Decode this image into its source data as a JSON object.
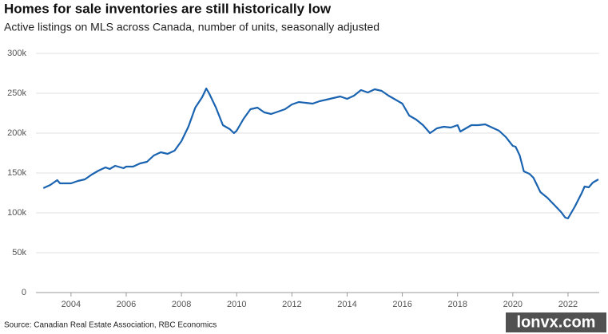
{
  "chart_data": {
    "type": "line",
    "title": "Homes for sale inventories are still historically low",
    "subtitle": "Active listings on MLS across Canada, number of units, seasonally adjusted",
    "source": "Source: Canadian Real Estate Association, RBC Economics",
    "watermark": "lonvx.com",
    "x": [
      2003.0,
      2003.25,
      2003.5,
      2003.6,
      2004.0,
      2004.25,
      2004.5,
      2004.75,
      2005.0,
      2005.25,
      2005.4,
      2005.6,
      2005.9,
      2006.0,
      2006.25,
      2006.5,
      2006.75,
      2007.0,
      2007.25,
      2007.5,
      2007.75,
      2008.0,
      2008.25,
      2008.5,
      2008.75,
      2008.9,
      2009.0,
      2009.25,
      2009.5,
      2009.75,
      2009.9,
      2010.0,
      2010.25,
      2010.5,
      2010.75,
      2011.0,
      2011.25,
      2011.5,
      2011.75,
      2012.0,
      2012.25,
      2012.5,
      2012.75,
      2013.0,
      2013.25,
      2013.5,
      2013.75,
      2014.0,
      2014.25,
      2014.5,
      2014.75,
      2015.0,
      2015.25,
      2015.5,
      2015.75,
      2016.0,
      2016.25,
      2016.5,
      2016.75,
      2017.0,
      2017.25,
      2017.5,
      2017.75,
      2018.0,
      2018.1,
      2018.5,
      2018.75,
      2019.0,
      2019.25,
      2019.5,
      2019.75,
      2020.0,
      2020.1,
      2020.25,
      2020.4,
      2020.6,
      2020.75,
      2021.0,
      2021.25,
      2021.5,
      2021.75,
      2021.9,
      2022.0,
      2022.25,
      2022.5,
      2022.6,
      2022.75,
      2022.9,
      2023.1
    ],
    "series": [
      {
        "name": "Active listings",
        "color": "#1a63b0",
        "values": [
          131000,
          135000,
          141000,
          137000,
          137000,
          140000,
          142000,
          148000,
          153000,
          157000,
          155000,
          159000,
          156000,
          158000,
          158000,
          162000,
          164000,
          172000,
          176000,
          174000,
          178000,
          190000,
          208000,
          232000,
          245000,
          256000,
          250000,
          232000,
          210000,
          205000,
          200000,
          203000,
          218000,
          230000,
          232000,
          226000,
          224000,
          227000,
          230000,
          236000,
          239000,
          238000,
          237000,
          240000,
          242000,
          244000,
          246000,
          243000,
          247000,
          254000,
          251000,
          255000,
          253000,
          247000,
          242000,
          237000,
          222000,
          217000,
          210000,
          200000,
          206000,
          208000,
          207000,
          210000,
          202000,
          210000,
          210000,
          211000,
          207000,
          203000,
          195000,
          184000,
          183000,
          172000,
          152000,
          149000,
          144000,
          126000,
          119000,
          110000,
          101000,
          94000,
          93000,
          108000,
          125000,
          133000,
          132000,
          138000,
          142000
        ]
      }
    ],
    "xlim": [
      2002.73,
      2023.13
    ],
    "xticks": [
      2004,
      2006,
      2008,
      2010,
      2012,
      2014,
      2016,
      2018,
      2020,
      2022
    ],
    "ylim": [
      0,
      300000
    ],
    "yticks": [
      0,
      {
        "value": 50000,
        "label": "50k"
      },
      {
        "value": 100000,
        "label": "100k"
      },
      {
        "value": 150000,
        "label": "150k"
      },
      {
        "value": 200000,
        "label": "200k"
      },
      {
        "value": 250000,
        "label": "250k"
      },
      {
        "value": 300000,
        "label": "300k"
      }
    ],
    "grid": true
  }
}
